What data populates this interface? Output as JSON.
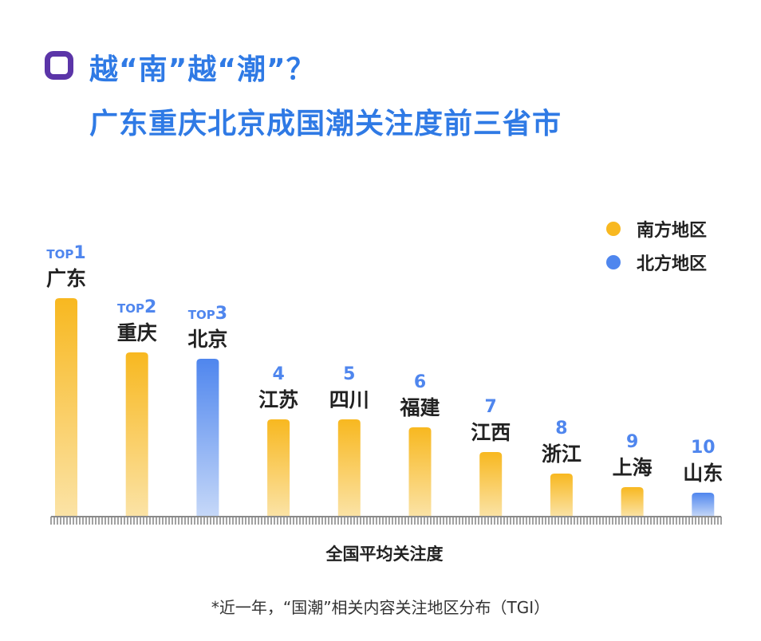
{
  "header": {
    "line1": "越“南”越“潮”？",
    "line2": "广东重庆北京成国潮关注度前三省市"
  },
  "legend": [
    {
      "label": "南方地区",
      "color": "#f8b820"
    },
    {
      "label": "北方地区",
      "color": "#4f86ee"
    }
  ],
  "chart_data": {
    "type": "bar",
    "title": "越“南”越“潮”？ 广东重庆北京成国潮关注度前三省市",
    "xlabel": "全国平均关注度",
    "ylabel": "",
    "ylim": [
      0,
      300
    ],
    "categories": [
      "广东",
      "重庆",
      "北京",
      "江苏",
      "四川",
      "福建",
      "江西",
      "浙江",
      "上海",
      "山东"
    ],
    "rank_labels": [
      "1",
      "2",
      "3",
      "4",
      "5",
      "6",
      "7",
      "8",
      "9",
      "10"
    ],
    "top_prefix": "TOP",
    "regions": [
      "南方地区",
      "南方地区",
      "北方地区",
      "南方地区",
      "南方地区",
      "南方地区",
      "南方地区",
      "南方地区",
      "南方地区",
      "北方地区"
    ],
    "values": [
      274,
      206,
      198,
      122,
      122,
      112,
      81,
      54,
      37,
      30
    ],
    "grid": false,
    "legend_position": "top-right"
  },
  "footnote": "*近一年，“国潮”相关内容关注地区分布（TGI）"
}
